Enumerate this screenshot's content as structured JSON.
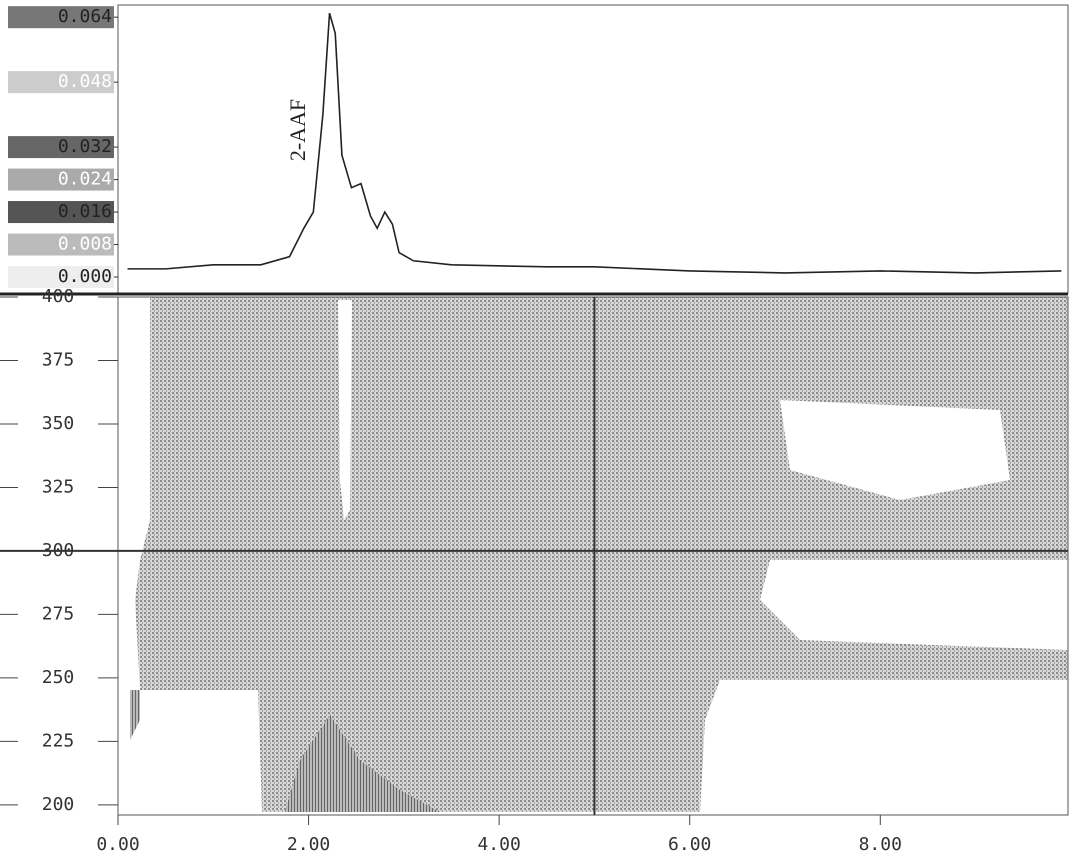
{
  "chart_data": [
    {
      "type": "line",
      "annotation": "2-AAF",
      "xlim": [
        0,
        9.97
      ],
      "ylim": [
        0,
        0.067
      ],
      "yticks": [
        {
          "value": 0,
          "label": "0.000"
        },
        0.008,
        0.016,
        0.024,
        0.032,
        0.048,
        0.064
      ],
      "color": "#222222",
      "x": [
        0.1,
        0.5,
        1.0,
        1.5,
        1.8,
        1.95,
        2.05,
        2.15,
        2.22,
        2.28,
        2.35,
        2.45,
        2.55,
        2.65,
        2.72,
        2.8,
        2.88,
        2.95,
        3.1,
        3.5,
        4.5,
        5.0,
        6.0,
        7.0,
        8.0,
        9.0,
        9.9
      ],
      "values": [
        0.002,
        0.002,
        0.003,
        0.003,
        0.005,
        0.012,
        0.016,
        0.04,
        0.065,
        0.06,
        0.03,
        0.022,
        0.023,
        0.015,
        0.012,
        0.016,
        0.013,
        0.006,
        0.004,
        0.003,
        0.0025,
        0.0025,
        0.0015,
        0.001,
        0.0015,
        0.001,
        0.0015
      ]
    },
    {
      "type": "contour",
      "xlim": [
        0,
        9.97
      ],
      "ylim": [
        196,
        400
      ],
      "xticks": [
        {
          "value": 0,
          "label": "0.00"
        },
        {
          "value": 2,
          "label": "2.00"
        },
        {
          "value": 4,
          "label": "4.00"
        },
        {
          "value": 6,
          "label": "6.00"
        },
        {
          "value": 8,
          "label": "8.00"
        }
      ],
      "yticks": [
        200,
        225,
        250,
        275,
        300,
        325,
        350,
        375,
        400
      ],
      "cursor": {
        "x": 5,
        "y": 300
      }
    }
  ]
}
